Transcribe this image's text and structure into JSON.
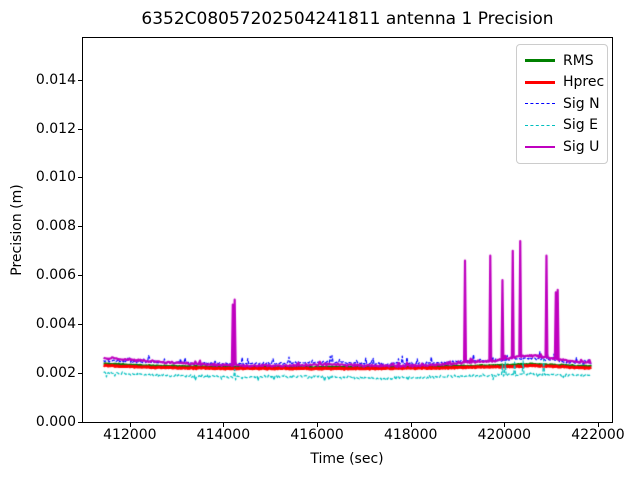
{
  "figure": {
    "title": "6352C08057202504241811 antenna 1 Precision"
  },
  "chart_data": {
    "type": "line",
    "title": "6352C08057202504241811 antenna 1 Precision",
    "xlabel": "Time (sec)",
    "ylabel": "Precision (m)",
    "xlim": [
      411000,
      422300
    ],
    "ylim": [
      0,
      0.0157
    ],
    "xticks": [
      412000,
      414000,
      416000,
      418000,
      420000,
      422000
    ],
    "yticks": [
      0.0,
      0.002,
      0.004,
      0.006,
      0.008,
      0.01,
      0.012,
      0.014
    ],
    "grid": false,
    "legend_position": "upper right",
    "x_start": 411440,
    "x_end": 421860,
    "x_step": 20,
    "series": [
      {
        "name": "RMS",
        "color": "#008000",
        "linestyle": "solid",
        "linewidth": 3,
        "seed": 11,
        "noise": 3e-05,
        "baseline": [
          [
            411440,
            0.00237
          ],
          [
            412500,
            0.00228
          ],
          [
            414000,
            0.00224
          ],
          [
            417000,
            0.00223
          ],
          [
            419000,
            0.00227
          ],
          [
            420000,
            0.00231
          ],
          [
            420600,
            0.00235
          ],
          [
            421200,
            0.00231
          ],
          [
            421860,
            0.00226
          ]
        ]
      },
      {
        "name": "Hprec",
        "color": "#ff0000",
        "linestyle": "solid",
        "linewidth": 3,
        "seed": 22,
        "noise": 3e-05,
        "baseline": [
          [
            411440,
            0.00232
          ],
          [
            412500,
            0.00223
          ],
          [
            414000,
            0.00219
          ],
          [
            417000,
            0.00218
          ],
          [
            419000,
            0.00222
          ],
          [
            420000,
            0.00226
          ],
          [
            420600,
            0.0023
          ],
          [
            421200,
            0.00226
          ],
          [
            421860,
            0.00221
          ]
        ]
      },
      {
        "name": "Sig N",
        "color": "#0000ff",
        "linestyle": "dashed",
        "linewidth": 1.2,
        "seed": 33,
        "noise": 6e-05,
        "spike_noise": {
          "p": 0.12,
          "amp": 0.0003,
          "sign": 1
        },
        "baseline": [
          [
            411440,
            0.0025
          ],
          [
            412400,
            0.00245
          ],
          [
            413400,
            0.0024
          ],
          [
            414600,
            0.00237
          ],
          [
            416300,
            0.00245
          ],
          [
            417200,
            0.00237
          ],
          [
            418300,
            0.00239
          ],
          [
            419300,
            0.0025
          ],
          [
            420100,
            0.00254
          ],
          [
            420450,
            0.00262
          ],
          [
            420900,
            0.00256
          ],
          [
            421400,
            0.00243
          ],
          [
            421860,
            0.0024
          ]
        ]
      },
      {
        "name": "Sig E",
        "color": "#00bfbf",
        "linestyle": "dashed",
        "linewidth": 1.2,
        "seed": 44,
        "noise": 7e-05,
        "spike_noise": {
          "p": 0.06,
          "amp": 0.00018,
          "sign": -1
        },
        "baseline": [
          [
            411440,
            0.00202
          ],
          [
            412400,
            0.00192
          ],
          [
            413600,
            0.00186
          ],
          [
            414400,
            0.00184
          ],
          [
            415600,
            0.00187
          ],
          [
            416600,
            0.00182
          ],
          [
            417400,
            0.00178
          ],
          [
            418200,
            0.00183
          ],
          [
            419200,
            0.00188
          ],
          [
            419900,
            0.00192
          ],
          [
            420600,
            0.00197
          ],
          [
            421100,
            0.00193
          ],
          [
            421860,
            0.00192
          ]
        ],
        "spikes": [
          [
            414230,
            0.00215
          ],
          [
            419960,
            0.00235
          ],
          [
            420010,
            0.00245
          ],
          [
            420220,
            0.00245
          ],
          [
            420400,
            0.0025
          ],
          [
            420840,
            0.00255
          ]
        ]
      },
      {
        "name": "Sig U",
        "color": "#bf00bf",
        "linestyle": "solid",
        "linewidth": 2.2,
        "seed": 55,
        "noise": 5e-05,
        "spike_noise": {
          "p": 0.06,
          "amp": 0.00012,
          "sign": 1
        },
        "baseline": [
          [
            411440,
            0.00262
          ],
          [
            412000,
            0.00254
          ],
          [
            412800,
            0.00244
          ],
          [
            413600,
            0.00236
          ],
          [
            414400,
            0.0023
          ],
          [
            415400,
            0.0023
          ],
          [
            416300,
            0.00237
          ],
          [
            417000,
            0.0023
          ],
          [
            418000,
            0.0023
          ],
          [
            418800,
            0.00236
          ],
          [
            419300,
            0.00246
          ],
          [
            419800,
            0.0025
          ],
          [
            420150,
            0.00262
          ],
          [
            420450,
            0.00272
          ],
          [
            420750,
            0.00268
          ],
          [
            421100,
            0.00258
          ],
          [
            421400,
            0.00248
          ],
          [
            421860,
            0.00242
          ]
        ],
        "spikes": [
          [
            414205,
            0.0048
          ],
          [
            414235,
            0.005
          ],
          [
            419160,
            0.0066
          ],
          [
            419690,
            0.0068
          ],
          [
            419965,
            0.0058
          ],
          [
            420185,
            0.007
          ],
          [
            420330,
            0.0074
          ],
          [
            420900,
            0.0068
          ],
          [
            421100,
            0.0053
          ],
          [
            421140,
            0.0054
          ]
        ]
      }
    ]
  }
}
